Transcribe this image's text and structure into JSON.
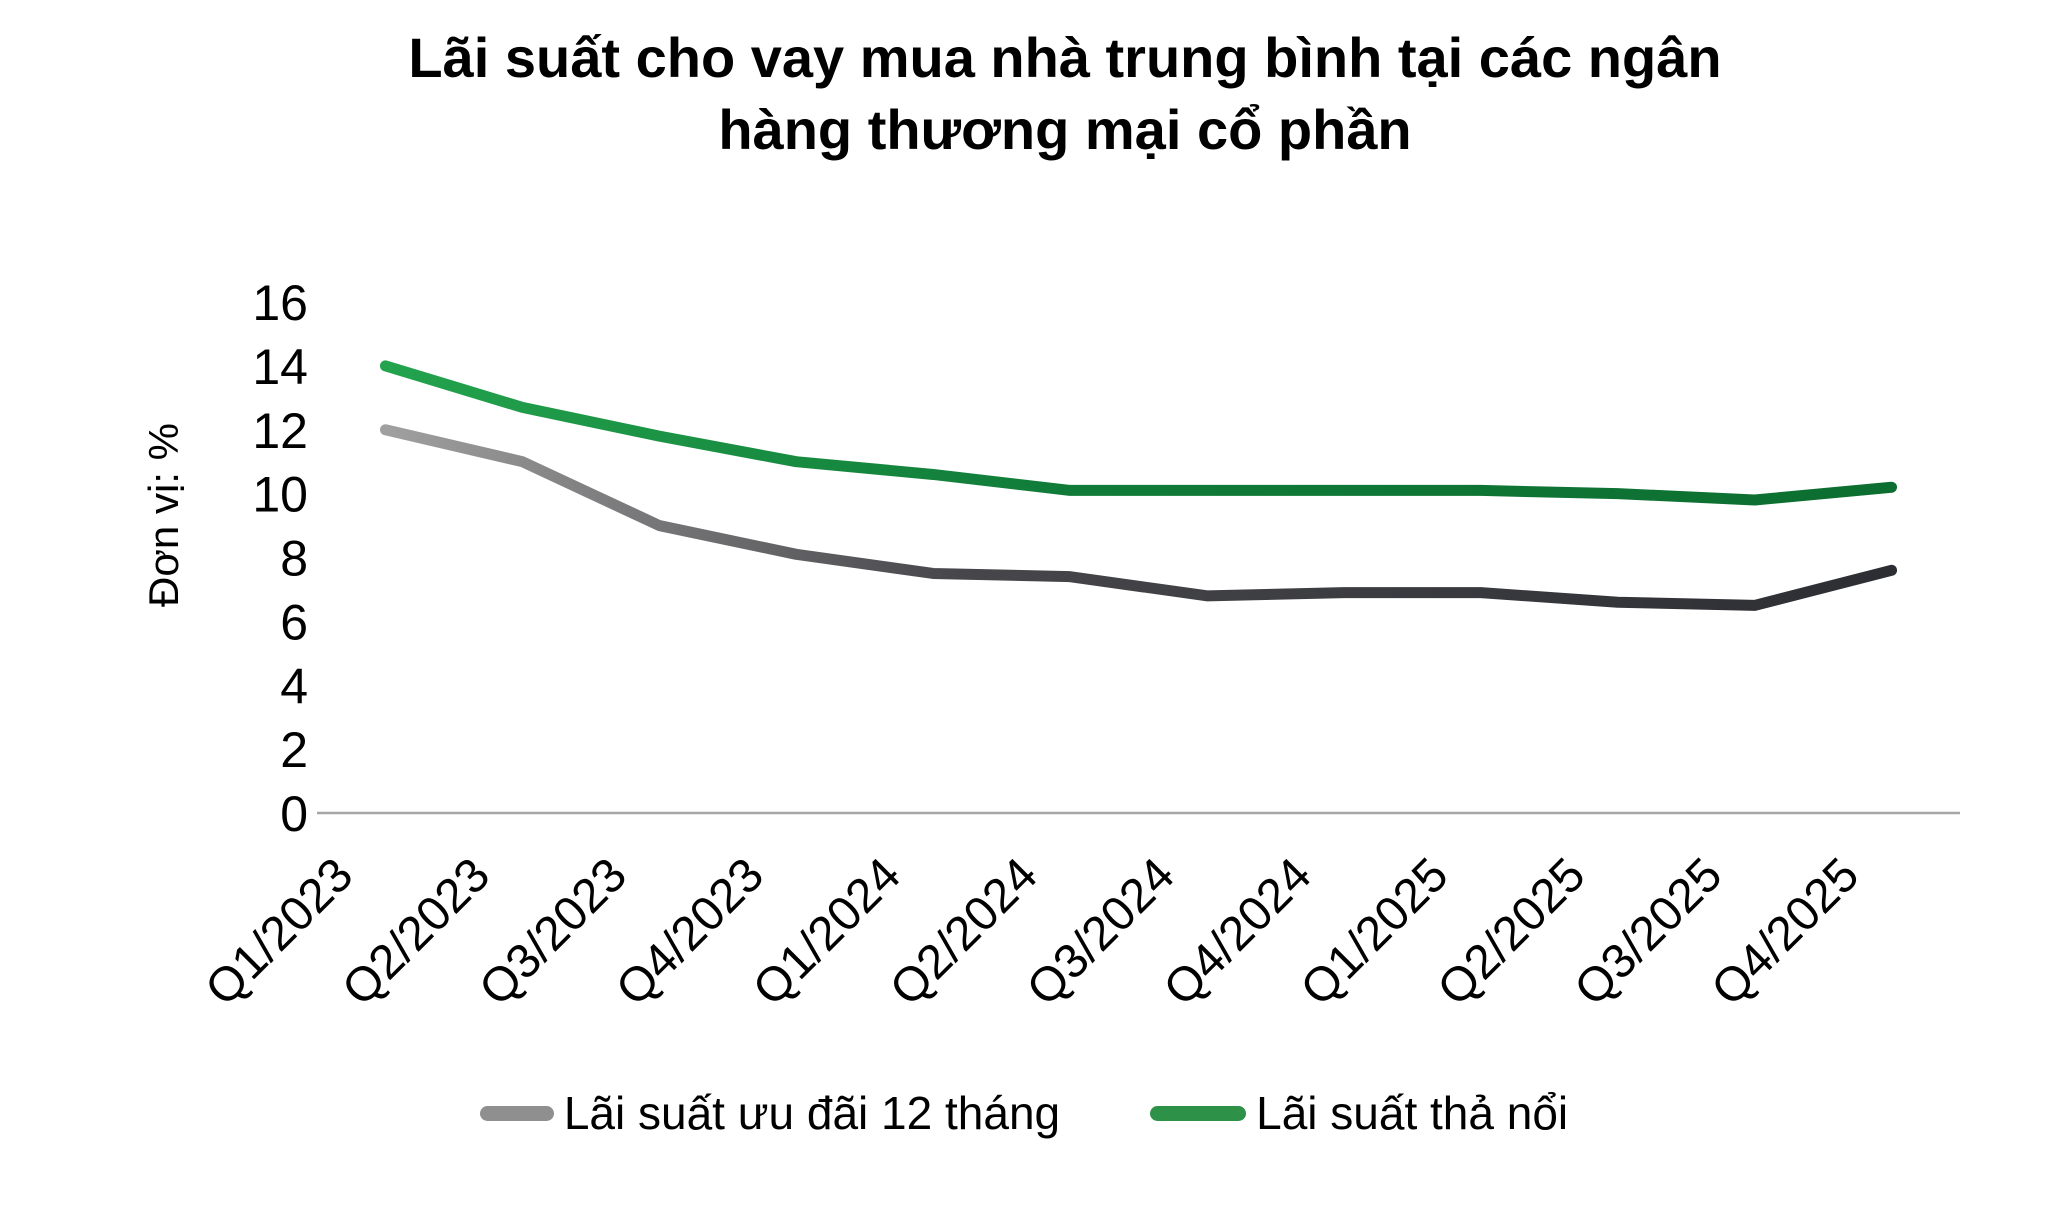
{
  "page": {
    "background": "#ffffff"
  },
  "title_lines": [
    "Lãi suất cho vay mua nhà trung bình tại các ngân",
    "hàng thương mại cổ phần"
  ],
  "chart_data": {
    "type": "line",
    "title": "Lãi suất cho vay mua nhà trung bình tại các ngân hàng thương mại cổ phần",
    "ylabel": "Đơn vị: %",
    "xlabel": "",
    "ylim": [
      0,
      16
    ],
    "ytick_step": 2,
    "ytick_labels": [
      "0",
      "2",
      "4",
      "6",
      "8",
      "10",
      "12",
      "14",
      "16"
    ],
    "grid": false,
    "legend_position": "bottom-center",
    "x_label_rotation_deg": 45,
    "categories": [
      "Q1/2023",
      "Q2/2023",
      "Q3/2023",
      "Q4/2023",
      "Q1/2024",
      "Q2/2024",
      "Q3/2024",
      "Q4/2024",
      "Q1/2025",
      "Q2/2025",
      "Q3/2025",
      "Q4/2025"
    ],
    "series": [
      {
        "name": "Lãi suất ưu đãi 12 tháng",
        "legend_color": "#8f8f8f",
        "color_start": "#a0a0a0",
        "color_mid": "#47474b",
        "color_end": "#2c2e33",
        "values": [
          12.0,
          11.0,
          9.0,
          8.1,
          7.5,
          7.4,
          6.8,
          6.9,
          6.9,
          6.6,
          6.5,
          7.6
        ]
      },
      {
        "name": "Lãi suất thả nổi",
        "legend_color": "#2d9247",
        "color_start": "#23a34d",
        "color_mid": "#107b39",
        "color_end": "#0c6e30",
        "values": [
          14.0,
          12.7,
          11.8,
          11.0,
          10.6,
          10.1,
          10.1,
          10.1,
          10.1,
          10.0,
          9.8,
          10.2
        ]
      }
    ],
    "axis_color": "#a6a6a6",
    "text_color": "#000000"
  }
}
